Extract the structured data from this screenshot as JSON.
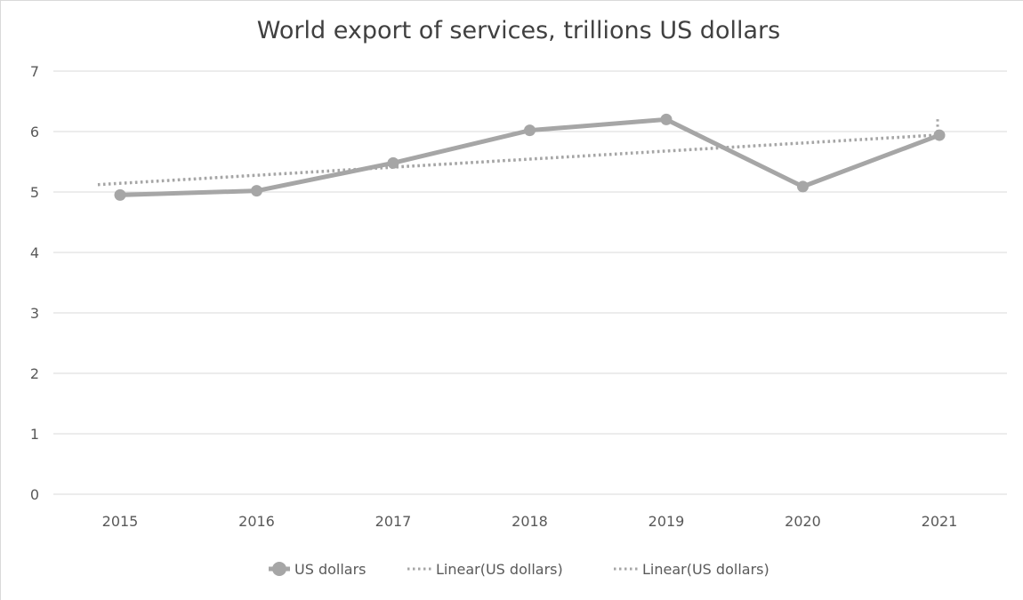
{
  "chart_data": {
    "type": "line",
    "title": "World export of services, trillions US dollars",
    "xlabel": "",
    "ylabel": "",
    "categories": [
      "2015",
      "2016",
      "2017",
      "2018",
      "2019",
      "2020",
      "2021"
    ],
    "series": [
      {
        "name": "US dollars",
        "values": [
          4.95,
          5.02,
          5.48,
          6.02,
          6.2,
          5.09,
          5.94
        ]
      }
    ],
    "trendlines": [
      {
        "label": "Linear(US dollars)",
        "type": "linear"
      },
      {
        "label": "Linear(US dollars)",
        "type": "linear"
      }
    ],
    "ylim": [
      0,
      7
    ],
    "yticks": [
      0,
      1,
      2,
      3,
      4,
      5,
      6,
      7
    ],
    "grid": true,
    "legend_position": "bottom",
    "colors": {
      "series": "#a6a6a6",
      "trend": "#a6a6a6",
      "grid": "#d9d9d9",
      "text": "#595959",
      "title": "#404040"
    }
  }
}
